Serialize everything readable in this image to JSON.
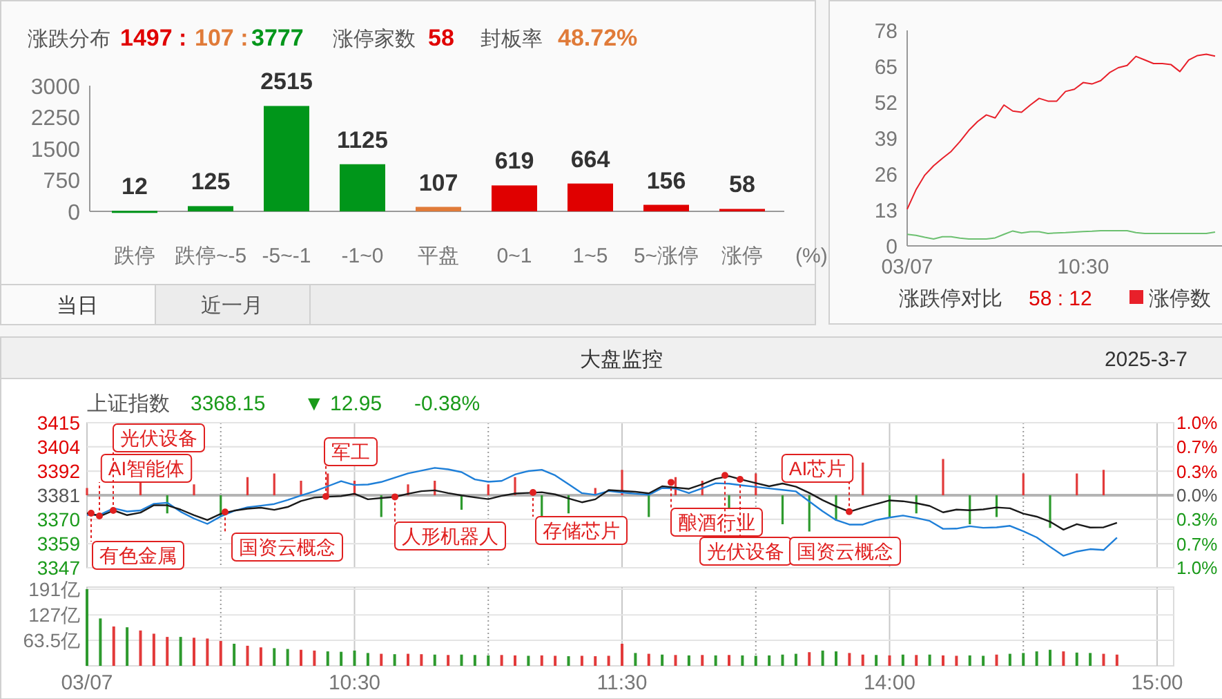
{
  "chart_data": [
    {
      "type": "bar",
      "title": "涨跌分布",
      "xlabel": "(%)",
      "categories": [
        "跌停",
        "跌停~-5",
        "-5~-1",
        "-1~0",
        "平盘",
        "0~1",
        "1~5",
        "5~涨停",
        "涨停"
      ],
      "values": [
        12,
        125,
        2515,
        1125,
        107,
        619,
        664,
        156,
        58
      ],
      "colors": [
        "#00961a",
        "#00961a",
        "#00961a",
        "#00961a",
        "#e07b39",
        "#e00000",
        "#e00000",
        "#e00000",
        "#e00000"
      ],
      "ylim": [
        0,
        3000
      ],
      "yticks": [
        0,
        750,
        1500,
        2250,
        3000
      ],
      "data_labels": true,
      "annotations": [
        "1497 :",
        "107 :",
        "3777",
        "涨停家数",
        "58",
        "封板率",
        "48.72%",
        "当日",
        "近一月"
      ]
    },
    {
      "type": "line",
      "categories": [
        "03/07",
        null,
        null,
        null,
        null,
        null,
        null,
        null,
        null,
        null,
        null,
        null,
        null,
        null,
        null,
        null,
        null,
        null,
        null,
        null,
        "10:30",
        null,
        null,
        null,
        null,
        null,
        null,
        null,
        null,
        null,
        null,
        null,
        null,
        null,
        null,
        null
      ],
      "ylim": [
        0,
        78
      ],
      "yticks": [
        0,
        13,
        26,
        39,
        52,
        65,
        78
      ],
      "legend": "bottom",
      "annotations": [
        "涨跌停对比",
        "58 : 12"
      ],
      "series": [
        {
          "name": "涨停数",
          "color": "#e8202a",
          "values": [
            13.3,
            20.3,
            25.6,
            29.0,
            31.7,
            34.2,
            37.8,
            41.8,
            45.0,
            47.4,
            46.3,
            51.0,
            48.8,
            48.4,
            51.0,
            53.4,
            52.4,
            52.4,
            55.9,
            56.7,
            59.1,
            58.6,
            59.8,
            62.7,
            64.5,
            65.3,
            68.6,
            67.3,
            66.0,
            66.0,
            65.6,
            63.1,
            67.3,
            68.9,
            69.4,
            68.7
          ]
        },
        {
          "color": "#6cc070",
          "values": [
            4.2,
            3.8,
            3.1,
            2.5,
            3.3,
            3.3,
            2.8,
            2.5,
            2.5,
            2.5,
            2.9,
            4.2,
            5.4,
            4.7,
            5.1,
            5.1,
            4.5,
            4.7,
            4.8,
            5.0,
            5.2,
            5.3,
            5.5,
            5.5,
            5.5,
            5.5,
            4.8,
            4.5,
            4.5,
            4.5,
            4.5,
            4.5,
            4.5,
            4.5,
            4.5,
            5.0
          ]
        }
      ]
    },
    {
      "type": "line",
      "title": "上证指数",
      "grid": true,
      "categories": [
        null,
        null,
        null,
        null,
        null,
        null,
        null,
        null,
        null,
        null,
        null,
        null,
        null,
        null,
        null,
        null,
        null,
        null,
        null,
        null,
        null,
        null,
        null,
        null,
        null,
        null,
        null,
        null,
        null,
        null,
        null,
        null,
        null,
        null,
        null,
        null,
        null,
        null,
        null,
        null,
        null,
        null,
        null,
        null,
        null,
        null,
        null,
        null,
        null,
        null,
        null,
        null,
        null,
        null,
        null,
        null,
        null,
        null,
        null,
        null,
        null,
        null,
        null,
        null,
        null,
        null,
        null,
        null,
        null,
        null,
        null,
        null,
        null,
        null,
        null,
        null,
        null,
        null,
        null,
        null,
        null
      ],
      "ylim": [
        3347.2,
        3415.0
      ],
      "yticks": [
        {
          "value": 3415.0,
          "label": "3415"
        },
        {
          "value": 3403.7,
          "label": "3404"
        },
        {
          "value": 3392.4,
          "label": "3392"
        },
        {
          "value": 3381.1,
          "label": "3381"
        },
        {
          "value": 3369.8,
          "label": "3370"
        },
        {
          "value": 3358.5,
          "label": "3359"
        },
        {
          "value": 3347.2,
          "label": "3347"
        }
      ],
      "y2lim": [
        -1.0,
        1.0
      ],
      "y2ticks": [
        {
          "value": 1.0,
          "label": "1.0%"
        },
        {
          "value": 0.67,
          "label": "0.7%"
        },
        {
          "value": 0.33,
          "label": "0.3%"
        },
        {
          "value": 0,
          "label": "0.0%"
        },
        {
          "value": -0.33,
          "label": "0.3%"
        },
        {
          "value": -0.67,
          "label": "0.7%"
        },
        {
          "value": -1.0,
          "label": "1.0%"
        }
      ],
      "annotations": [
        "3368.15",
        "▼ 12.95",
        "-0.38%",
        "大盘监控",
        "2025-3-7",
        "有色金属",
        "AI智能体",
        "光伏设备",
        "国资云概念",
        "军工",
        "人形机器人",
        "存储芯片",
        "酿酒行业",
        "光伏设备",
        "国资云概念",
        "AI芯片"
      ],
      "series": [
        {
          "type": "bar",
          "axis": "y2",
          "values": [
            0.1,
            null,
            null,
            null,
            0.2,
            null,
            -0.25,
            null,
            0.15,
            null,
            -0.3,
            null,
            0.25,
            null,
            0.3,
            null,
            0.2,
            null,
            0.3,
            null,
            0.2,
            null,
            -0.3,
            null,
            0.15,
            null,
            0.2,
            null,
            -0.2,
            null,
            0.15,
            null,
            0.25,
            null,
            -0.3,
            null,
            -0.25,
            null,
            0.1,
            null,
            0.35,
            null,
            -0.3,
            null,
            0.25,
            null,
            0.2,
            null,
            -0.2,
            null,
            0.3,
            null,
            -0.4,
            null,
            -0.5,
            null,
            -0.35,
            null,
            0.45,
            null,
            -0.3,
            null,
            -0.25,
            null,
            0.5,
            null,
            -0.4,
            null,
            -0.3,
            null,
            0.3,
            null,
            -0.45,
            null,
            0.3,
            null,
            0.35,
            null,
            null,
            null,
            null
          ],
          "colors": [
            "#e23a3a",
            null,
            null,
            null,
            "#e23a3a",
            null,
            "#2e9a2e",
            null,
            "#e23a3a",
            null,
            "#2e9a2e",
            null,
            "#e23a3a",
            null,
            "#e23a3a",
            null,
            "#e23a3a",
            null,
            "#e23a3a",
            null,
            "#e23a3a",
            null,
            "#2e9a2e",
            null,
            "#e23a3a",
            null,
            "#e23a3a",
            null,
            "#2e9a2e",
            null,
            "#e23a3a",
            null,
            "#e23a3a",
            null,
            "#2e9a2e",
            null,
            "#2e9a2e",
            null,
            "#e23a3a",
            null,
            "#e23a3a",
            null,
            "#2e9a2e",
            null,
            "#e23a3a",
            null,
            "#e23a3a",
            null,
            "#2e9a2e",
            null,
            "#e23a3a",
            null,
            "#2e9a2e",
            null,
            "#2e9a2e",
            null,
            "#2e9a2e",
            null,
            "#e23a3a",
            null,
            "#2e9a2e",
            null,
            "#2e9a2e",
            null,
            "#e23a3a",
            null,
            "#2e9a2e",
            null,
            "#2e9a2e",
            null,
            "#e23a3a",
            null,
            "#2e9a2e",
            null,
            "#e23a3a",
            null,
            "#e23a3a",
            null,
            null,
            null,
            null
          ]
        },
        {
          "color": "#1e7fd8",
          "values": [
            3371.9,
            3372.1,
            3375.0,
            3373.5,
            3374.0,
            3377.1,
            3377.6,
            3373.4,
            3370.2,
            3367.7,
            3371.2,
            3373.8,
            3375.5,
            3376.2,
            3377.0,
            3378.9,
            3381.0,
            3382.9,
            3385.3,
            3387.7,
            3385.9,
            3386.1,
            3387.3,
            3389.3,
            3391.3,
            3392.6,
            3393.9,
            3393.2,
            3391.9,
            3388.5,
            3387.4,
            3387.8,
            3390.8,
            3392.4,
            3393.0,
            3390.4,
            3386.3,
            3382.1,
            3381.3,
            3383.1,
            3382.4,
            3381.8,
            3381.3,
            3384.5,
            3384.2,
            3382.1,
            3384.4,
            3386.7,
            3386.5,
            3385.7,
            3385.0,
            3384.3,
            3383.6,
            3382.9,
            3378.2,
            3373.6,
            3369.5,
            3367.4,
            3367.4,
            3369.5,
            3370.7,
            3371.6,
            3370.5,
            3369.1,
            3365.4,
            3365.5,
            3366.6,
            3365.9,
            3366.1,
            3366.8,
            3364.3,
            3361.4,
            3357.0,
            3352.8,
            3354.8,
            3355.9,
            3355.5,
            3361.3,
            null,
            null,
            null
          ]
        },
        {
          "color": "#1a1a1a",
          "values": [
            3372.7,
            3371.4,
            3374.0,
            3371.8,
            3373.0,
            3376.4,
            3376.4,
            3374.4,
            3371.8,
            3369.5,
            3372.4,
            3373.9,
            3374.8,
            3375.3,
            3374.3,
            3375.6,
            3378.4,
            3380.0,
            3380.4,
            3380.7,
            3381.8,
            3379.2,
            3379.8,
            3380.3,
            3381.8,
            3383.0,
            3383.4,
            3382.1,
            3381.0,
            3380.1,
            3379.3,
            3380.8,
            3381.9,
            3382.2,
            3382.5,
            3381.5,
            3379.6,
            3377.8,
            3379.2,
            3383.5,
            3383.1,
            3382.7,
            3382.0,
            3385.3,
            3384.7,
            3384.1,
            3386.2,
            3388.8,
            3390.0,
            3388.3,
            3386.8,
            3385.3,
            3386.6,
            3385.1,
            3382.2,
            3378.8,
            3375.9,
            3373.4,
            3375.3,
            3377.0,
            3378.7,
            3378.3,
            3377.4,
            3376.1,
            3373.1,
            3374.4,
            3374.1,
            3374.5,
            3375.4,
            3375.0,
            3372.5,
            3371.1,
            3368.7,
            3365.0,
            3367.6,
            3366.0,
            3366.1,
            3368.2,
            null,
            null,
            null
          ]
        }
      ]
    },
    {
      "type": "bar",
      "grid": true,
      "categories": [
        "03/07",
        null,
        null,
        null,
        null,
        null,
        null,
        null,
        null,
        null,
        null,
        null,
        null,
        null,
        null,
        null,
        null,
        null,
        null,
        null,
        "10:30",
        null,
        null,
        null,
        null,
        null,
        null,
        null,
        null,
        null,
        null,
        null,
        null,
        null,
        null,
        null,
        null,
        null,
        null,
        null,
        "11:30",
        null,
        null,
        null,
        null,
        null,
        null,
        null,
        null,
        null,
        null,
        null,
        null,
        null,
        null,
        null,
        null,
        null,
        null,
        null,
        "14:00",
        null,
        null,
        null,
        null,
        null,
        null,
        null,
        null,
        null,
        null,
        null,
        null,
        null,
        null,
        null,
        null,
        null,
        null,
        null,
        "15:00"
      ],
      "ylim": [
        0,
        196
      ],
      "yticks": [
        {
          "value": 63.5,
          "label": "63.5亿"
        },
        {
          "value": 127,
          "label": "127亿"
        },
        {
          "value": 191,
          "label": "191亿"
        }
      ],
      "values": [
        191,
        118,
        98,
        96,
        88,
        80,
        72,
        72,
        70,
        68,
        62,
        55,
        50,
        46,
        44,
        42,
        40,
        38,
        36,
        35,
        38,
        32,
        30,
        29,
        30,
        29,
        28,
        27,
        28,
        27,
        26,
        27,
        26,
        25,
        26,
        25,
        24,
        25,
        24,
        25,
        55,
        32,
        30,
        28,
        27,
        26,
        27,
        26,
        27,
        26,
        25,
        26,
        28,
        30,
        34,
        38,
        36,
        32,
        28,
        27,
        26,
        28,
        27,
        28,
        26,
        25,
        26,
        25,
        28,
        30,
        32,
        36,
        40,
        36,
        33,
        32,
        30,
        28,
        null,
        null,
        null
      ],
      "colors": [
        "#2e9a2e",
        "#2e9a2e",
        "#e23a3a",
        "#2e9a2e",
        "#e23a3a",
        "#e23a3a",
        "#e23a3a",
        "#2e9a2e",
        "#e23a3a",
        "#e23a3a",
        "#e23a3a",
        "#2e9a2e",
        "#e23a3a",
        "#e23a3a",
        "#2e9a2e",
        "#2e9a2e",
        "#e23a3a",
        "#e23a3a",
        "#2e9a2e",
        "#2e9a2e",
        "#2e9a2e",
        "#2e9a2e",
        "#e23a3a",
        "#2e9a2e",
        "#e23a3a",
        "#e23a3a",
        "#2e9a2e",
        "#e23a3a",
        "#2e9a2e",
        "#2e9a2e",
        "#2e9a2e",
        "#e23a3a",
        "#e23a3a",
        "#2e9a2e",
        "#e23a3a",
        "#e23a3a",
        "#2e9a2e",
        "#e23a3a",
        "#e23a3a",
        "#e23a3a",
        "#e23a3a",
        "#2e9a2e",
        "#e23a3a",
        "#2e9a2e",
        "#e23a3a",
        "#2e9a2e",
        "#e23a3a",
        "#2e9a2e",
        "#e23a3a",
        "#2e9a2e",
        "#2e9a2e",
        "#2e9a2e",
        "#2e9a2e",
        "#2e9a2e",
        "#e23a3a",
        "#2e9a2e",
        "#2e9a2e",
        "#e23a3a",
        "#e23a3a",
        "#2e9a2e",
        "#e23a3a",
        "#2e9a2e",
        "#e23a3a",
        "#2e9a2e",
        "#e23a3a",
        "#e23a3a",
        "#2e9a2e",
        "#2e9a2e",
        "#e23a3a",
        "#2e9a2e",
        "#2e9a2e",
        "#2e9a2e",
        "#2e9a2e",
        "#e23a3a",
        "#2e9a2e",
        "#2e9a2e",
        "#e23a3a",
        "#e23a3a",
        null,
        null,
        null
      ]
    }
  ]
}
